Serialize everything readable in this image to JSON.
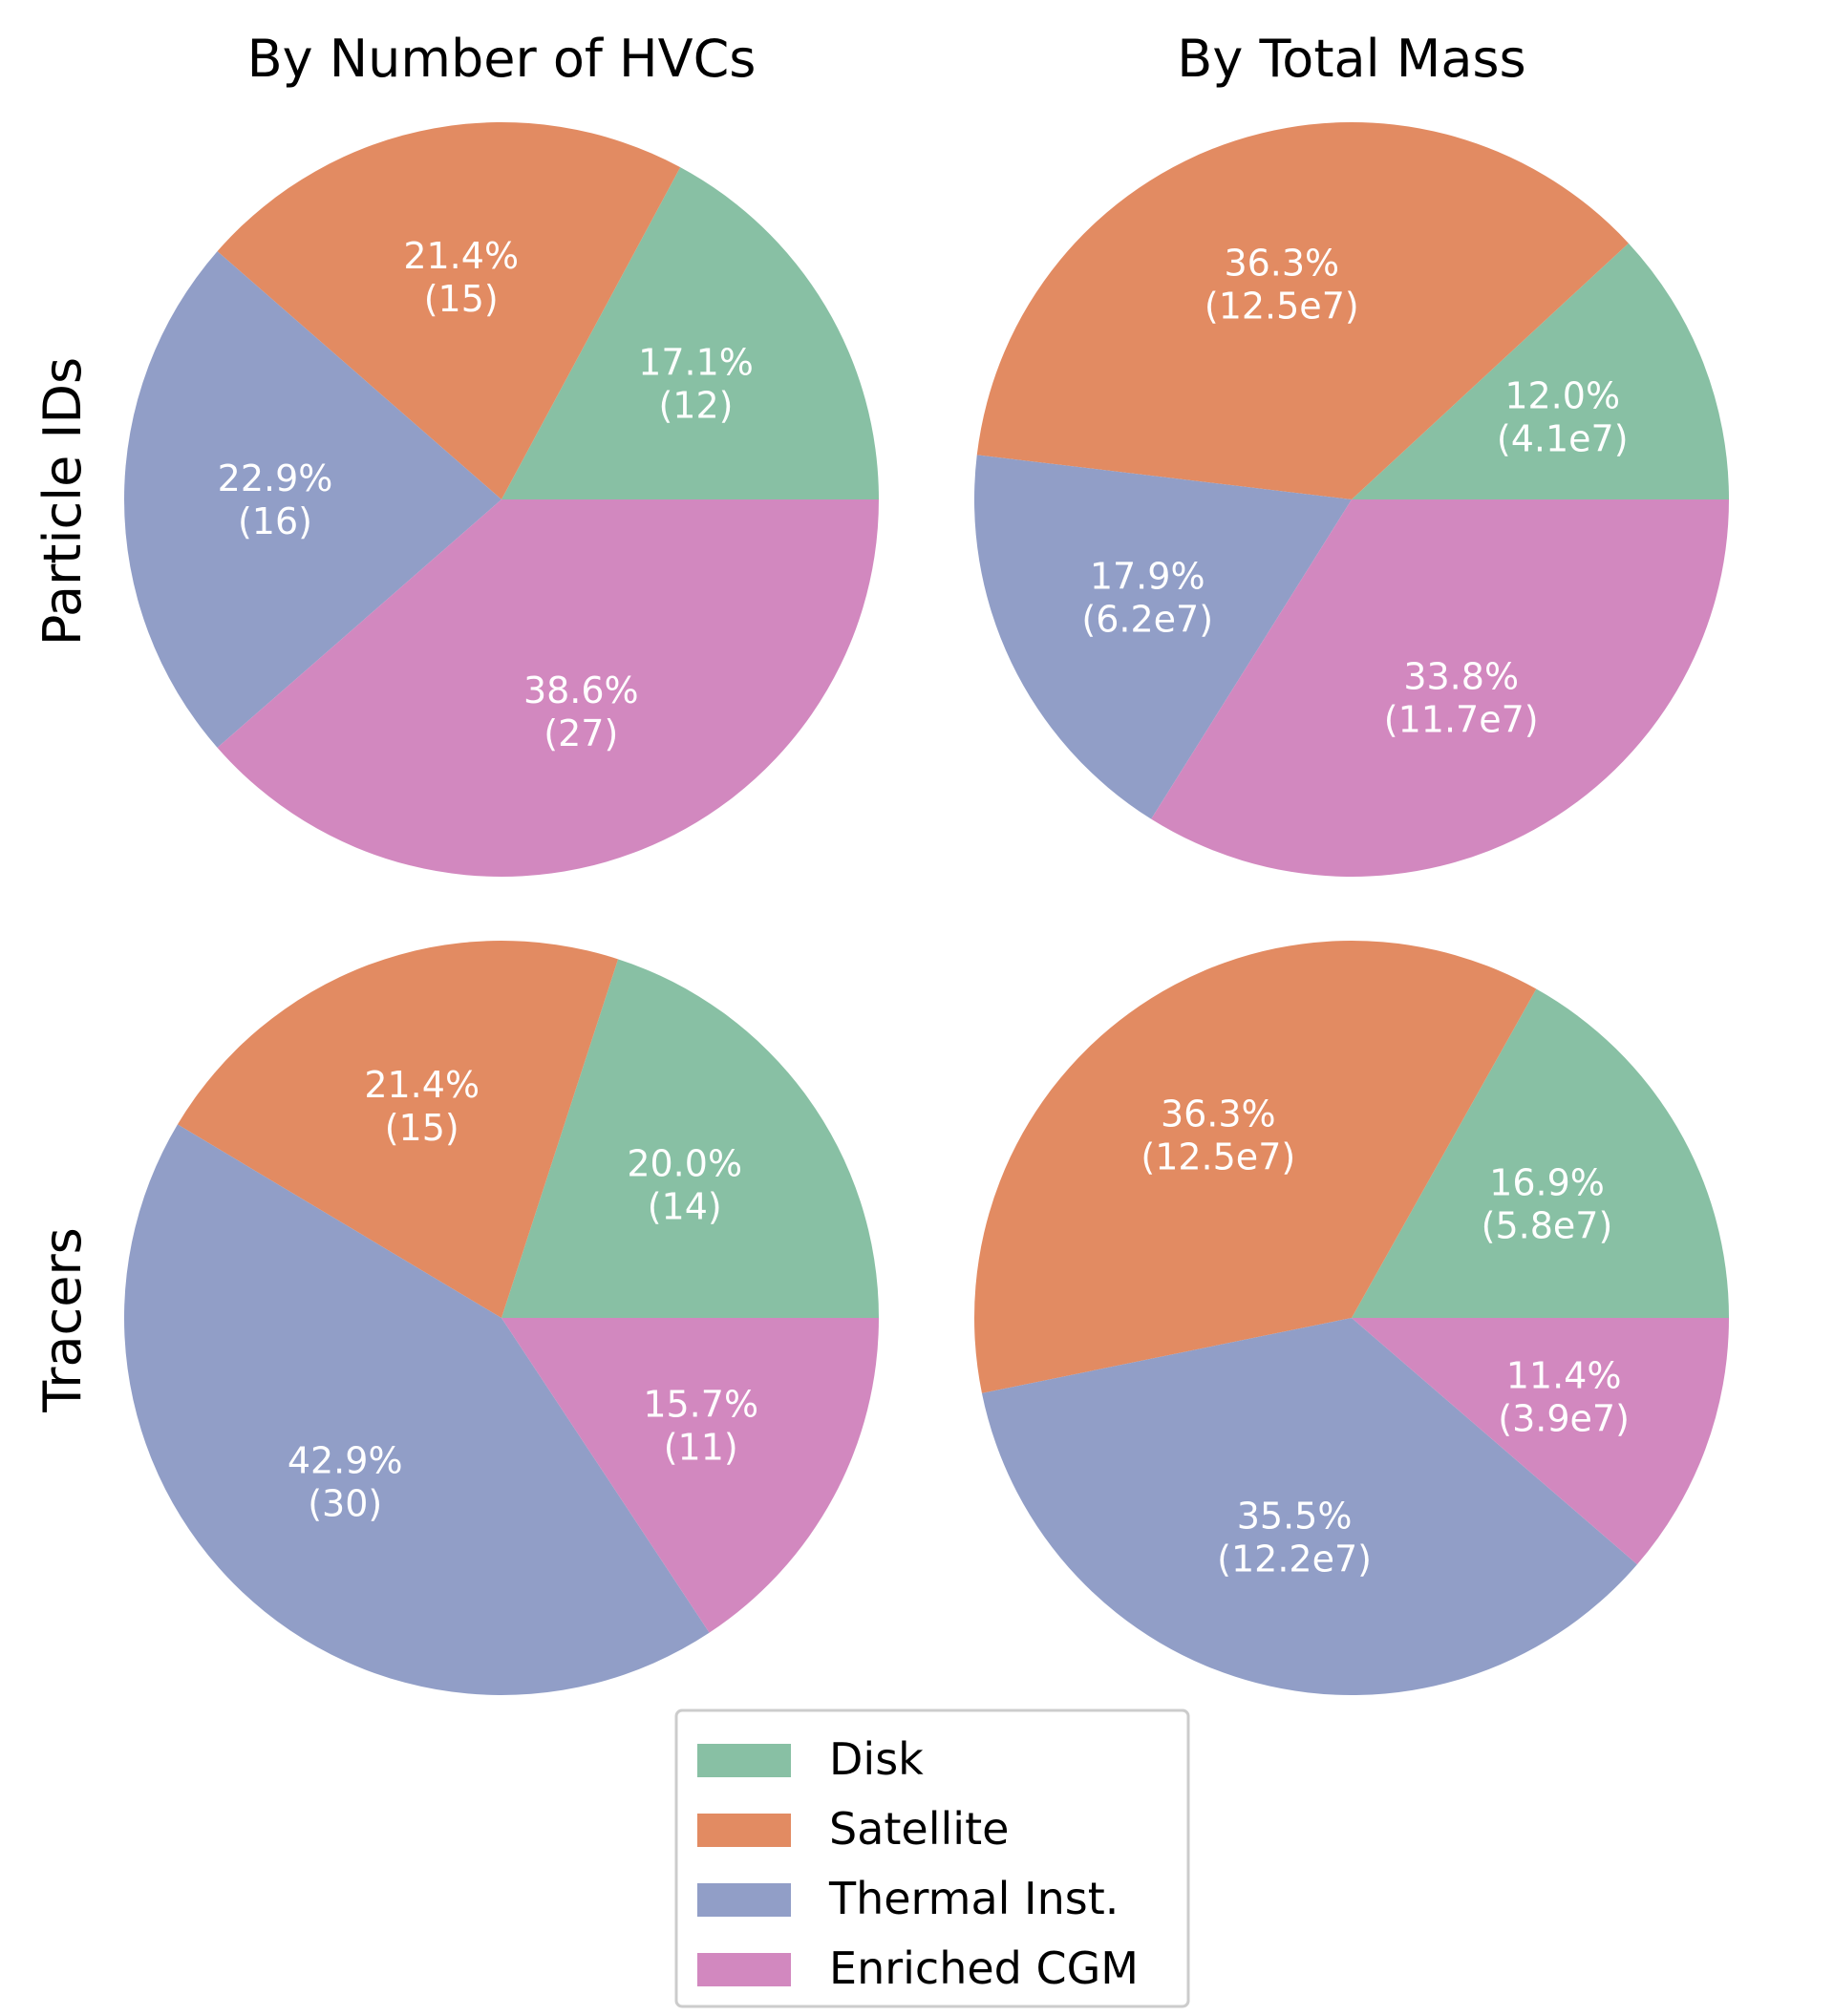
{
  "column_titles": [
    "By Number of HVCs",
    "By Total Mass"
  ],
  "row_labels": [
    "Particle IDs",
    "Tracers"
  ],
  "legend": [
    {
      "label": "Disk",
      "color": "#88c0a4"
    },
    {
      "label": "Satellite",
      "color": "#e28b62"
    },
    {
      "label": "Thermal Inst.",
      "color": "#919ec7"
    },
    {
      "label": "Enriched CGM",
      "color": "#d288bf"
    }
  ],
  "chart_data": [
    {
      "type": "pie",
      "row": "Particle IDs",
      "column": "By Number of HVCs",
      "categories": [
        "Disk",
        "Satellite",
        "Thermal Inst.",
        "Enriched CGM"
      ],
      "values": [
        12,
        15,
        16,
        27
      ],
      "percent_labels": [
        "17.1%",
        "21.4%",
        "22.9%",
        "38.6%"
      ],
      "value_labels": [
        "(12)",
        "(15)",
        "(16)",
        "(27)"
      ]
    },
    {
      "type": "pie",
      "row": "Particle IDs",
      "column": "By Total Mass",
      "categories": [
        "Disk",
        "Satellite",
        "Thermal Inst.",
        "Enriched CGM"
      ],
      "values": [
        4.1,
        12.5,
        6.2,
        11.7
      ],
      "percent_labels": [
        "12.0%",
        "36.3%",
        "17.9%",
        "33.8%"
      ],
      "value_labels": [
        "(4.1e7)",
        "(12.5e7)",
        "(6.2e7)",
        "(11.7e7)"
      ]
    },
    {
      "type": "pie",
      "row": "Tracers",
      "column": "By Number of HVCs",
      "categories": [
        "Disk",
        "Satellite",
        "Thermal Inst.",
        "Enriched CGM"
      ],
      "values": [
        14,
        15,
        30,
        11
      ],
      "percent_labels": [
        "20.0%",
        "21.4%",
        "42.9%",
        "15.7%"
      ],
      "value_labels": [
        "(14)",
        "(15)",
        "(30)",
        "(11)"
      ]
    },
    {
      "type": "pie",
      "row": "Tracers",
      "column": "By Total Mass",
      "categories": [
        "Disk",
        "Satellite",
        "Thermal Inst.",
        "Enriched CGM"
      ],
      "values": [
        5.8,
        12.5,
        12.2,
        3.9
      ],
      "percent_labels": [
        "16.9%",
        "36.3%",
        "35.5%",
        "11.4%"
      ],
      "value_labels": [
        "(5.8e7)",
        "(12.5e7)",
        "(12.2e7)",
        "(3.9e7)"
      ]
    }
  ]
}
